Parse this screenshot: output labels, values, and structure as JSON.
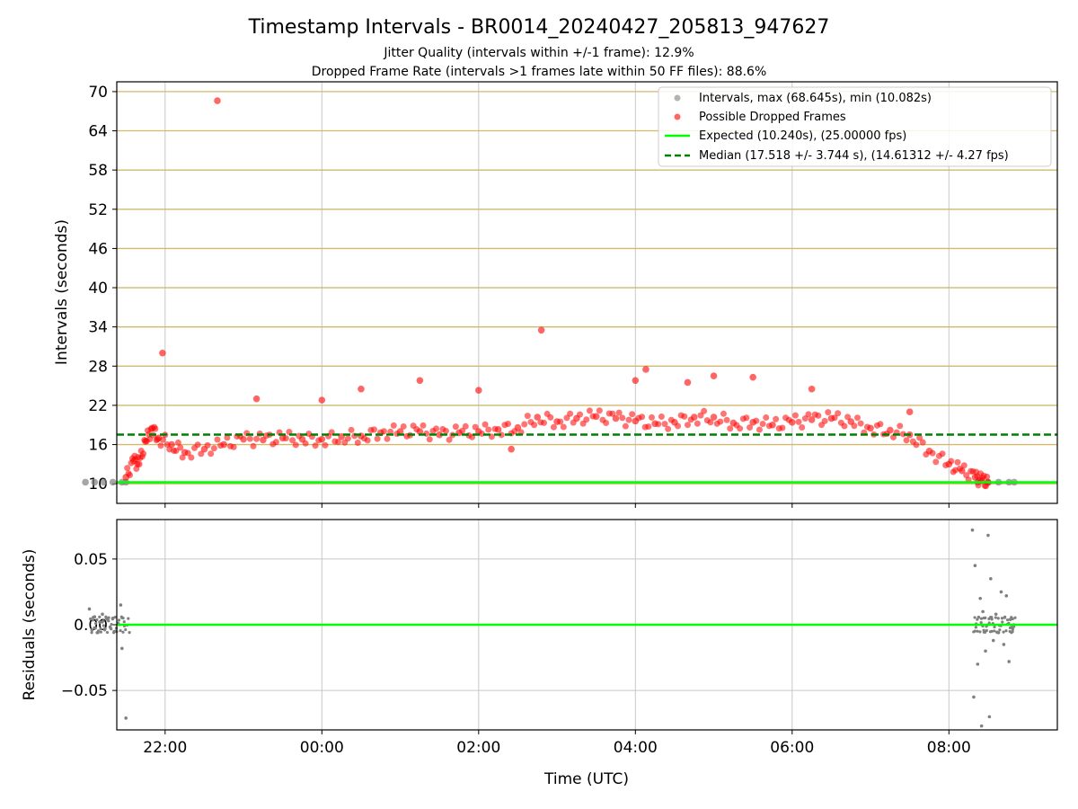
{
  "figure": {
    "title": "Timestamp Intervals - BR0014_20240427_205813_947627",
    "subtitle_1": "Jitter Quality (intervals within +/-1 frame): 12.9%",
    "subtitle_2": "Dropped Frame Rate (intervals >1 frames late within 50 FF files): 88.6%"
  },
  "colors": {
    "intervals": "#808080",
    "dropped": "#ff0000",
    "expected": "#00ff00",
    "median": "#008000",
    "hgrid": "#d2b96e",
    "vgrid": "#c8c8c8"
  },
  "chart_data": [
    {
      "type": "scatter",
      "ylabel": "Intervals (seconds)",
      "xlim": [
        "21:23",
        "09:23"
      ],
      "ylim": [
        7,
        71.5
      ],
      "yticks": [
        "10",
        "16",
        "22",
        "28",
        "34",
        "40",
        "46",
        "52",
        "58",
        "64",
        "70"
      ],
      "grid": true,
      "legend": {
        "placement": "top-right",
        "entries": [
          "Intervals, max (68.645s), min (10.082s)",
          "Possible Dropped Frames",
          "Expected (10.240s), (25.00000 fps)",
          "Median (17.518 +/- 3.744 s), (14.61312 +/- 4.27 fps)"
        ]
      },
      "lines": [
        {
          "name": "Expected",
          "y": 10.24,
          "style": "solid"
        },
        {
          "name": "Median",
          "y": 17.518,
          "style": "dashed"
        }
      ],
      "series": [
        {
          "name": "Intervals",
          "points": [
            [
              "20:59",
              10.24
            ],
            [
              "21:06",
              10.24
            ],
            [
              "21:13",
              10.24
            ],
            [
              "21:20",
              10.24
            ],
            [
              "21:27",
              10.24
            ],
            [
              "21:30",
              10.24
            ],
            [
              "08:22",
              10.24
            ],
            [
              "08:30",
              10.24
            ],
            [
              "08:38",
              10.24
            ],
            [
              "08:46",
              10.24
            ],
            [
              "08:50",
              10.24
            ]
          ]
        },
        {
          "name": "Possible Dropped Frames",
          "points": [
            [
              "21:30",
              11.0
            ],
            [
              "21:36",
              13.5
            ],
            [
              "21:40",
              13.0
            ],
            [
              "21:45",
              16.5
            ],
            [
              "21:50",
              18.5
            ],
            [
              "21:55",
              17.0
            ],
            [
              "22:05",
              16.0
            ],
            [
              "22:15",
              14.8
            ],
            [
              "22:30",
              15.3
            ],
            [
              "22:45",
              16.0
            ],
            [
              "23:00",
              16.8
            ],
            [
              "23:15",
              16.7
            ],
            [
              "23:30",
              17.0
            ],
            [
              "23:45",
              16.8
            ],
            [
              "00:00",
              16.8
            ],
            [
              "00:15",
              17.2
            ],
            [
              "00:30",
              17.3
            ],
            [
              "00:45",
              17.8
            ],
            [
              "01:00",
              18.0
            ],
            [
              "01:15",
              18.0
            ],
            [
              "01:30",
              17.5
            ],
            [
              "01:45",
              17.8
            ],
            [
              "02:00",
              18.0
            ],
            [
              "02:15",
              18.3
            ],
            [
              "02:30",
              18.6
            ],
            [
              "02:45",
              20.2
            ],
            [
              "03:00",
              19.5
            ],
            [
              "03:15",
              20.0
            ],
            [
              "03:30",
              20.3
            ],
            [
              "03:45",
              20.0
            ],
            [
              "04:00",
              19.6
            ],
            [
              "04:15",
              19.2
            ],
            [
              "04:30",
              19.4
            ],
            [
              "04:45",
              20.2
            ],
            [
              "05:00",
              20.2
            ],
            [
              "05:15",
              19.3
            ],
            [
              "05:30",
              19.4
            ],
            [
              "05:45",
              19.0
            ],
            [
              "06:00",
              19.4
            ],
            [
              "06:15",
              19.8
            ],
            [
              "06:30",
              20.0
            ],
            [
              "06:45",
              19.5
            ],
            [
              "07:00",
              18.5
            ],
            [
              "07:15",
              18.2
            ],
            [
              "07:30",
              17.5
            ],
            [
              "07:45",
              15.0
            ],
            [
              "08:00",
              13.0
            ],
            [
              "08:10",
              12.0
            ],
            [
              "08:20",
              11.0
            ],
            [
              "08:25",
              10.5
            ],
            [
              "08:30",
              10.2
            ],
            [
              "21:58",
              30.0
            ],
            [
              "22:40",
              68.6
            ],
            [
              "02:48",
              33.5
            ],
            [
              "04:08",
              27.5
            ],
            [
              "05:00",
              26.5
            ],
            [
              "05:30",
              26.3
            ],
            [
              "04:40",
              25.5
            ],
            [
              "04:00",
              25.8
            ],
            [
              "01:15",
              25.8
            ],
            [
              "00:30",
              24.5
            ],
            [
              "23:10",
              23.0
            ],
            [
              "00:00",
              22.8
            ],
            [
              "02:00",
              24.3
            ],
            [
              "06:15",
              24.5
            ],
            [
              "07:30",
              21.0
            ],
            [
              "02:25",
              15.3
            ]
          ]
        }
      ]
    },
    {
      "type": "scatter",
      "xlabel": "Time (UTC)",
      "ylabel": "Residuals (seconds)",
      "xticks": [
        "22:00",
        "00:00",
        "02:00",
        "04:00",
        "06:00",
        "08:00"
      ],
      "yticks": [
        "0.05",
        "0.00",
        "−0.05"
      ],
      "ylim": [
        -0.08,
        0.08
      ],
      "grid": true,
      "lines": [
        {
          "name": "Expected",
          "y": 0.0,
          "style": "solid"
        }
      ],
      "series": [
        {
          "name": "Residuals",
          "points": [
            [
              "21:02",
              0.012
            ],
            [
              "21:04",
              -0.004
            ],
            [
              "21:06",
              0.006
            ],
            [
              "21:08",
              -0.006
            ],
            [
              "21:10",
              0.002
            ],
            [
              "21:12",
              0.008
            ],
            [
              "21:14",
              -0.003
            ],
            [
              "21:16",
              0.004
            ],
            [
              "21:18",
              -0.002
            ],
            [
              "21:20",
              0.005
            ],
            [
              "21:22",
              -0.005
            ],
            [
              "21:24",
              0.001
            ],
            [
              "21:26",
              0.015
            ],
            [
              "21:27",
              -0.018
            ],
            [
              "21:30",
              -0.071
            ],
            [
              "08:18",
              0.072
            ],
            [
              "08:19",
              -0.055
            ],
            [
              "08:20",
              0.045
            ],
            [
              "08:22",
              -0.03
            ],
            [
              "08:24",
              0.02
            ],
            [
              "08:25",
              -0.077
            ],
            [
              "08:26",
              0.01
            ],
            [
              "08:28",
              -0.02
            ],
            [
              "08:30",
              0.068
            ],
            [
              "08:31",
              -0.07
            ],
            [
              "08:32",
              0.035
            ],
            [
              "08:34",
              -0.012
            ],
            [
              "08:36",
              0.008
            ],
            [
              "08:38",
              -0.006
            ],
            [
              "08:40",
              0.025
            ],
            [
              "08:42",
              -0.015
            ],
            [
              "08:44",
              0.022
            ],
            [
              "08:46",
              -0.028
            ],
            [
              "08:47",
              0.004
            ],
            [
              "08:48",
              -0.002
            ]
          ]
        }
      ]
    }
  ]
}
